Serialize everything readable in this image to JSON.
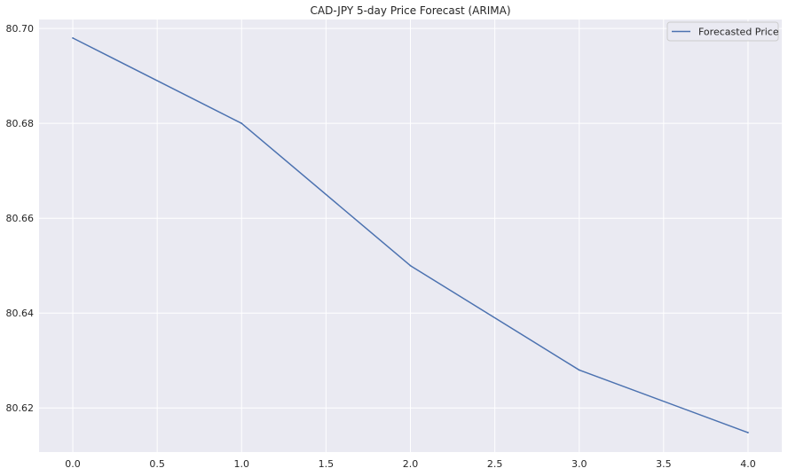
{
  "chart_data": {
    "type": "line",
    "title": "CAD-JPY 5-day Price Forecast (ARIMA)",
    "xlabel": "",
    "ylabel": "",
    "x": [
      0,
      1,
      2,
      3,
      4
    ],
    "series": [
      {
        "name": "Forecasted Price",
        "values": [
          80.698,
          80.68,
          80.65,
          80.628,
          80.6148
        ]
      }
    ],
    "xlim": [
      -0.2,
      4.2
    ],
    "ylim": [
      80.6107,
      80.7019
    ],
    "xticks": [
      0.0,
      0.5,
      1.0,
      1.5,
      2.0,
      2.5,
      3.0,
      3.5,
      4.0
    ],
    "xtick_labels": [
      "0.0",
      "0.5",
      "1.0",
      "1.5",
      "2.0",
      "2.5",
      "3.0",
      "3.5",
      "4.0"
    ],
    "yticks": [
      80.62,
      80.64,
      80.66,
      80.68,
      80.7
    ],
    "ytick_labels": [
      "80.62",
      "80.64",
      "80.66",
      "80.68",
      "80.70"
    ],
    "grid": true,
    "legend_position": "top-right",
    "colors": {
      "series": "#4c72b0",
      "plot_background": "#eaeaf2",
      "grid": "#ffffff",
      "text": "#262626"
    }
  }
}
